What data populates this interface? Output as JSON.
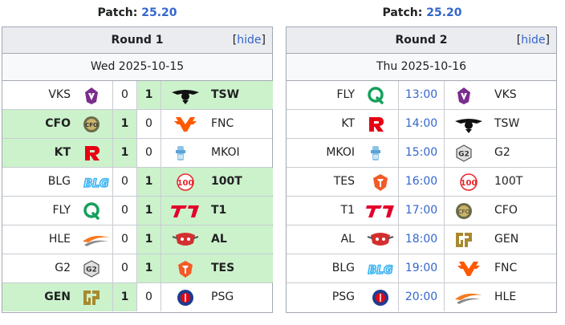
{
  "round1": {
    "patch_label": "Patch:",
    "patch_version": "25.20",
    "title": "Round 1",
    "hide_prefix": "[",
    "hide_label": "hide",
    "hide_suffix": "]",
    "date": "Wed 2025-10-15",
    "matches": [
      {
        "left": "VKS",
        "s1": "0",
        "s2": "1",
        "right": "TSW",
        "winner": "right",
        "left_icon": "vks-logo-icon",
        "right_icon": "tsw-logo-icon"
      },
      {
        "left": "CFO",
        "s1": "1",
        "s2": "0",
        "right": "FNC",
        "winner": "left",
        "left_icon": "cfo-logo-icon",
        "right_icon": "fnc-logo-icon"
      },
      {
        "left": "KT",
        "s1": "1",
        "s2": "0",
        "right": "MKOI",
        "winner": "left",
        "left_icon": "kt-logo-icon",
        "right_icon": "mkoi-logo-icon"
      },
      {
        "left": "BLG",
        "s1": "0",
        "s2": "1",
        "right": "100T",
        "winner": "right",
        "left_icon": "blg-logo-icon",
        "right_icon": "100t-logo-icon"
      },
      {
        "left": "FLY",
        "s1": "0",
        "s2": "1",
        "right": "T1",
        "winner": "right",
        "left_icon": "fly-logo-icon",
        "right_icon": "t1-logo-icon"
      },
      {
        "left": "HLE",
        "s1": "0",
        "s2": "1",
        "right": "AL",
        "winner": "right",
        "left_icon": "hle-logo-icon",
        "right_icon": "al-logo-icon"
      },
      {
        "left": "G2",
        "s1": "0",
        "s2": "1",
        "right": "TES",
        "winner": "right",
        "left_icon": "g2-logo-icon",
        "right_icon": "tes-logo-icon"
      },
      {
        "left": "GEN",
        "s1": "1",
        "s2": "0",
        "right": "PSG",
        "winner": "left",
        "left_icon": "gen-logo-icon",
        "right_icon": "psg-logo-icon"
      }
    ]
  },
  "round2": {
    "patch_label": "Patch:",
    "patch_version": "25.20",
    "title": "Round 2",
    "hide_prefix": "[",
    "hide_label": "hide",
    "hide_suffix": "]",
    "date": "Thu 2025-10-16",
    "matches": [
      {
        "left": "FLY",
        "time": "13:00",
        "right": "VKS",
        "left_icon": "fly-logo-icon",
        "right_icon": "vks-logo-icon"
      },
      {
        "left": "KT",
        "time": "14:00",
        "right": "TSW",
        "left_icon": "kt-logo-icon",
        "right_icon": "tsw-logo-icon"
      },
      {
        "left": "MKOI",
        "time": "15:00",
        "right": "G2",
        "left_icon": "mkoi-logo-icon",
        "right_icon": "g2-logo-icon"
      },
      {
        "left": "TES",
        "time": "16:00",
        "right": "100T",
        "left_icon": "tes-logo-icon",
        "right_icon": "100t-logo-icon"
      },
      {
        "left": "T1",
        "time": "17:00",
        "right": "CFO",
        "left_icon": "t1-logo-icon",
        "right_icon": "cfo-logo-icon"
      },
      {
        "left": "AL",
        "time": "18:00",
        "right": "GEN",
        "left_icon": "al-logo-icon",
        "right_icon": "gen-logo-icon"
      },
      {
        "left": "BLG",
        "time": "19:00",
        "right": "FNC",
        "left_icon": "blg-logo-icon",
        "right_icon": "fnc-logo-icon"
      },
      {
        "left": "PSG",
        "time": "20:00",
        "right": "HLE",
        "left_icon": "psg-logo-icon",
        "right_icon": "hle-logo-icon"
      }
    ]
  },
  "colors": {
    "link": "#3366cc",
    "win_bg": "#ccf2cc",
    "header_bg": "#eaecf0",
    "border": "#a2a9b1"
  }
}
